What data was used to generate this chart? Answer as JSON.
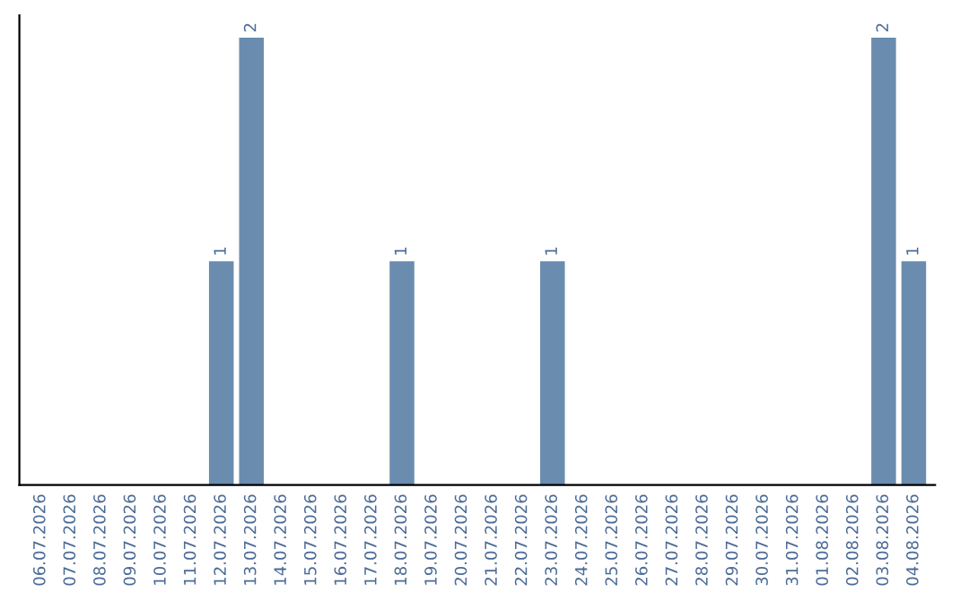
{
  "chart_data": {
    "type": "bar",
    "categories": [
      "06.07.2026",
      "07.07.2026",
      "08.07.2026",
      "09.07.2026",
      "10.07.2026",
      "11.07.2026",
      "12.07.2026",
      "13.07.2026",
      "14.07.2026",
      "15.07.2026",
      "16.07.2026",
      "17.07.2026",
      "18.07.2026",
      "19.07.2026",
      "20.07.2026",
      "21.07.2026",
      "22.07.2026",
      "23.07.2026",
      "24.07.2026",
      "25.07.2026",
      "26.07.2026",
      "27.07.2026",
      "28.07.2026",
      "29.07.2026",
      "30.07.2026",
      "31.07.2026",
      "01.08.2026",
      "02.08.2026",
      "03.08.2026",
      "04.08.2026"
    ],
    "values": [
      0,
      0,
      0,
      0,
      0,
      0,
      1,
      2,
      0,
      0,
      0,
      0,
      1,
      0,
      0,
      0,
      0,
      1,
      0,
      0,
      0,
      0,
      0,
      0,
      0,
      0,
      0,
      0,
      2,
      1
    ],
    "color": "#6a8caf",
    "value_labels": [
      null,
      null,
      null,
      null,
      null,
      null,
      "1",
      "2",
      null,
      null,
      null,
      null,
      "1",
      null,
      null,
      null,
      null,
      "1",
      null,
      null,
      null,
      null,
      null,
      null,
      null,
      null,
      null,
      null,
      "2",
      "1"
    ],
    "tick_labels": "x",
    "grid": false,
    "legend": false
  }
}
